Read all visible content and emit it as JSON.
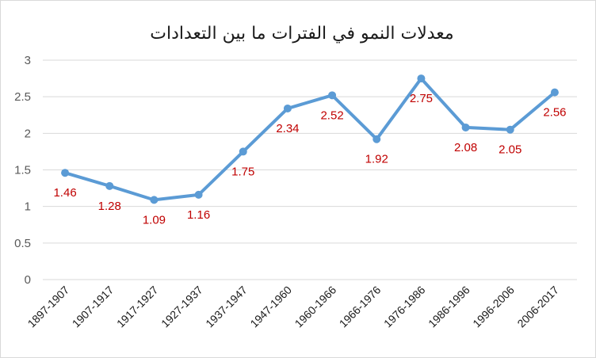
{
  "chart_data": {
    "type": "line",
    "title": "معدلات النمو في الفترات ما بين التعدادات",
    "xlabel": "",
    "ylabel": "",
    "categories": [
      "1897-1907",
      "1907-1917",
      "1917-1927",
      "1927-1937",
      "1937-1947",
      "1947-1960",
      "1960-1966",
      "1966-1976",
      "1976-1986",
      "1986-1996",
      "1996-2006",
      "2006-2017"
    ],
    "series": [
      {
        "values": [
          1.46,
          1.28,
          1.09,
          1.16,
          1.75,
          2.34,
          2.52,
          1.92,
          2.75,
          2.08,
          2.05,
          2.56
        ]
      }
    ],
    "data_labels": [
      "1.46",
      "1.28",
      "1.09",
      "1.16",
      "1.75",
      "2.34",
      "2.52",
      "1.92",
      "2.75",
      "2.08",
      "2.05",
      "2.56"
    ],
    "yticks": [
      "0",
      "0.5",
      "1",
      "1.5",
      "2",
      "2.5",
      "3"
    ],
    "ylim": [
      0,
      3
    ],
    "grid": true,
    "legend": "none",
    "colors": {
      "line": "#5b9bd5",
      "data_label": "#c00000",
      "grid": "#d9d9d9"
    }
  }
}
